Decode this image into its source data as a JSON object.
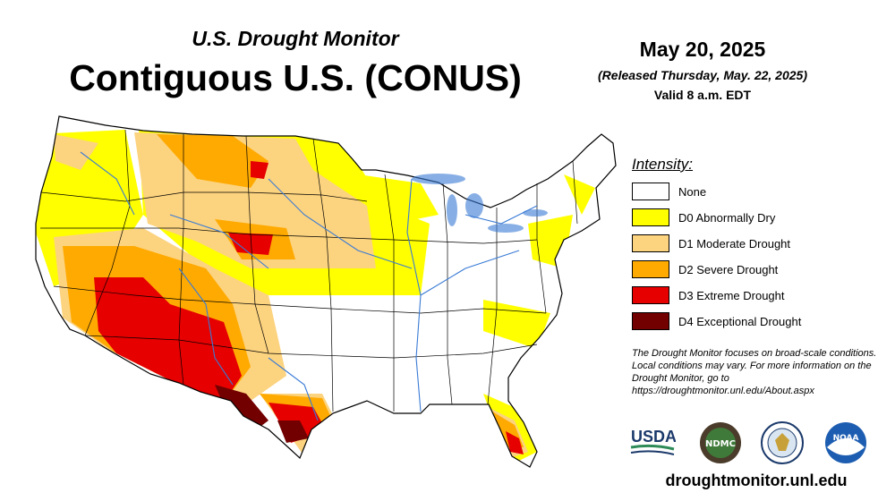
{
  "header": {
    "title_small": "U.S. Drought Monitor",
    "title_big": "Contiguous U.S. (CONUS)",
    "date": "May 20, 2025",
    "released": "(Released Thursday, May. 22, 2025)",
    "valid": "Valid 8 a.m. EDT"
  },
  "legend": {
    "title": "Intensity:",
    "items": [
      {
        "label": "None",
        "color": "#ffffff"
      },
      {
        "label": "D0 Abnormally Dry",
        "color": "#ffff00"
      },
      {
        "label": "D1 Moderate Drought",
        "color": "#fcd37f"
      },
      {
        "label": "D2 Severe Drought",
        "color": "#ffaa00"
      },
      {
        "label": "D3 Extreme Drought",
        "color": "#e60000"
      },
      {
        "label": "D4 Exceptional Drought",
        "color": "#730000"
      }
    ]
  },
  "note": "The Drought Monitor focuses on broad-scale conditions. Local conditions may vary. For more information on the Drought Monitor, go to https://droughtmonitor.unl.edu/About.aspx",
  "logos": {
    "usda": "USDA",
    "ndmc": "NDMC",
    "noaa": "NOAA"
  },
  "footer": {
    "site": "droughtmonitor.unl.edu"
  }
}
